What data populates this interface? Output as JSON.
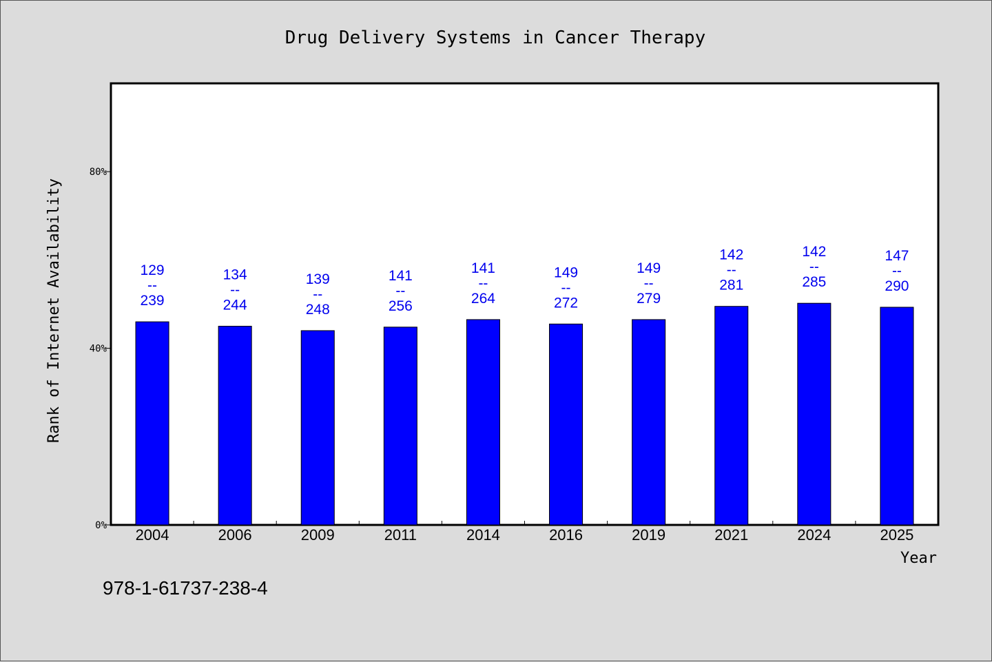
{
  "chart_data": {
    "type": "bar",
    "title": "Drug Delivery Systems in Cancer Therapy",
    "xlabel": "Year",
    "ylabel": "Rank of Internet Availability",
    "categories": [
      "2004",
      "2006",
      "2009",
      "2011",
      "2014",
      "2016",
      "2019",
      "2021",
      "2024",
      "2025"
    ],
    "values": [
      46.0,
      45.0,
      44.0,
      44.8,
      46.5,
      45.5,
      46.5,
      49.5,
      50.2,
      49.3
    ],
    "bar_labels": [
      {
        "top": "129",
        "sep": "--",
        "bottom": "239"
      },
      {
        "top": "134",
        "sep": "--",
        "bottom": "244"
      },
      {
        "top": "139",
        "sep": "--",
        "bottom": "248"
      },
      {
        "top": "141",
        "sep": "--",
        "bottom": "256"
      },
      {
        "top": "141",
        "sep": "--",
        "bottom": "264"
      },
      {
        "top": "149",
        "sep": "--",
        "bottom": "272"
      },
      {
        "top": "149",
        "sep": "--",
        "bottom": "279"
      },
      {
        "top": "142",
        "sep": "--",
        "bottom": "281"
      },
      {
        "top": "142",
        "sep": "--",
        "bottom": "285"
      },
      {
        "top": "147",
        "sep": "--",
        "bottom": "290"
      }
    ],
    "yticks": [
      {
        "value": 0,
        "label": "0%"
      },
      {
        "value": 40,
        "label": "40%"
      },
      {
        "value": 80,
        "label": "80%"
      }
    ],
    "ylim": [
      0,
      100
    ],
    "grid": false,
    "legend": "none",
    "colors": {
      "bar": "#0000ff",
      "label": "#0000ee",
      "plot_bg": "#ffffff",
      "page_bg": "#dcdcdc"
    }
  },
  "footnote": "978-1-61737-238-4"
}
